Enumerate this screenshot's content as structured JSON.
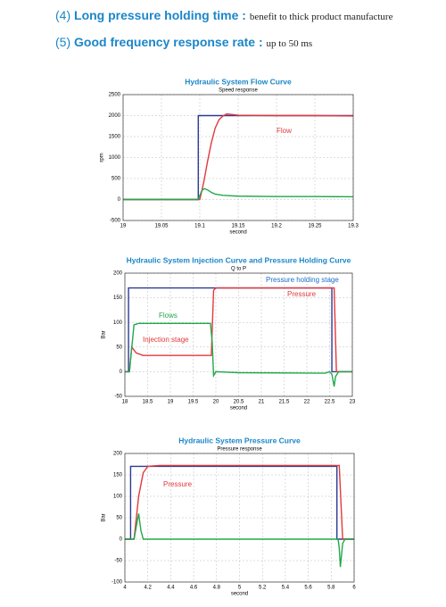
{
  "features": [
    {
      "num": "(4)",
      "title": "Long pressure holding time :",
      "text": "benefit to thick product manufacture"
    },
    {
      "num": "(5)",
      "title": "Good frequency response rate :",
      "text": "up to 50 ms"
    }
  ],
  "chart_data": [
    {
      "type": "line",
      "title": "Hydraulic System Flow Curve",
      "subtitle": "Speed response",
      "ylabel": "rpm",
      "xlabel": "second",
      "xlim": [
        19,
        19.3
      ],
      "xticks": [
        19,
        19.05,
        19.1,
        19.15,
        19.2,
        19.25,
        19.3
      ],
      "ylim": [
        -500,
        2500
      ],
      "yticks": [
        -500,
        0,
        500,
        1000,
        1500,
        2000,
        2500
      ],
      "grid": true,
      "series": [
        {
          "color": "#2b3a92",
          "x": [
            19,
            19.098,
            19.098,
            19.3
          ],
          "values": [
            0,
            0,
            2000,
            2000
          ]
        },
        {
          "color": "#e5383c",
          "x": [
            19,
            19.1,
            19.105,
            19.11,
            19.115,
            19.12,
            19.125,
            19.13,
            19.135,
            19.14,
            19.15,
            19.2,
            19.25,
            19.3
          ],
          "values": [
            0,
            0,
            400,
            900,
            1350,
            1700,
            1900,
            1990,
            2040,
            2030,
            2010,
            2000,
            2000,
            1990
          ]
        },
        {
          "color": "#22a84a",
          "x": [
            19,
            19.098,
            19.1,
            19.103,
            19.106,
            19.11,
            19.115,
            19.12,
            19.13,
            19.15,
            19.2,
            19.25,
            19.3
          ],
          "values": [
            0,
            0,
            100,
            220,
            260,
            230,
            170,
            130,
            100,
            80,
            70,
            70,
            65
          ]
        }
      ],
      "annotations": [
        {
          "text": "Flow",
          "color": "#e5383c"
        }
      ]
    },
    {
      "type": "line",
      "title": "Hydraulic System Injection Curve and Pressure Holding Curve",
      "subtitle": "Q to P",
      "ylabel": "Bar",
      "xlabel": "second",
      "xlim": [
        18,
        23
      ],
      "xticks": [
        18,
        18.5,
        19,
        19.5,
        20,
        20.5,
        21,
        21.5,
        22,
        22.5,
        23
      ],
      "ylim": [
        -50,
        200
      ],
      "yticks": [
        -50,
        0,
        50,
        100,
        150,
        200
      ],
      "grid": true,
      "series": [
        {
          "color": "#2b3a92",
          "x": [
            18,
            18.08,
            18.08,
            22.55,
            22.55,
            23
          ],
          "values": [
            0,
            0,
            170,
            170,
            0,
            0
          ]
        },
        {
          "color": "#e5383c",
          "x": [
            18,
            18.1,
            18.15,
            18.25,
            18.4,
            19.9,
            19.95,
            20,
            22.6,
            22.65,
            23
          ],
          "values": [
            0,
            0,
            50,
            38,
            33,
            33,
            165,
            170,
            170,
            0,
            0
          ]
        },
        {
          "color": "#22a84a",
          "x": [
            18,
            18.1,
            18.2,
            18.3,
            19.88,
            19.92,
            19.95,
            20,
            20.5,
            22.4,
            22.5,
            22.55,
            22.6,
            22.63,
            22.7,
            23
          ],
          "values": [
            0,
            0,
            95,
            98,
            98,
            60,
            -8,
            0,
            -2,
            -3,
            0,
            -5,
            -30,
            -10,
            0,
            0
          ]
        }
      ],
      "annotations": [
        {
          "text": "Pressure holding stage",
          "color": "#1b6fc8"
        },
        {
          "text": "Pressure",
          "color": "#e5383c"
        },
        {
          "text": "Flows",
          "color": "#22a84a"
        },
        {
          "text": "Injection stage",
          "color": "#e5383c"
        }
      ]
    },
    {
      "type": "line",
      "title": "Hydraulic System Pressure Curve",
      "subtitle": "Pressure response",
      "ylabel": "Bar",
      "xlabel": "second",
      "xlim": [
        4,
        6
      ],
      "xticks": [
        4,
        4.2,
        4.4,
        4.6,
        4.8,
        5,
        5.2,
        5.4,
        5.6,
        5.8,
        6
      ],
      "ylim": [
        -100,
        200
      ],
      "yticks": [
        -100,
        -50,
        0,
        50,
        100,
        150,
        200
      ],
      "grid": true,
      "series": [
        {
          "color": "#2b3a92",
          "x": [
            4,
            4.05,
            4.05,
            5.85,
            5.85,
            6
          ],
          "values": [
            0,
            0,
            170,
            170,
            0,
            0
          ]
        },
        {
          "color": "#e5383c",
          "x": [
            4,
            4.08,
            4.12,
            4.16,
            4.2,
            4.3,
            5.87,
            5.9,
            6
          ],
          "values": [
            0,
            0,
            100,
            155,
            170,
            172,
            172,
            0,
            0
          ]
        },
        {
          "color": "#22a84a",
          "x": [
            4,
            4.08,
            4.1,
            4.12,
            4.14,
            4.16,
            4.2,
            5.86,
            5.87,
            5.88,
            5.9,
            5.92,
            6
          ],
          "values": [
            0,
            0,
            30,
            60,
            20,
            0,
            0,
            0,
            -20,
            -65,
            -10,
            0,
            0
          ]
        }
      ],
      "annotations": [
        {
          "text": "Pressure",
          "color": "#e5383c"
        }
      ]
    }
  ]
}
